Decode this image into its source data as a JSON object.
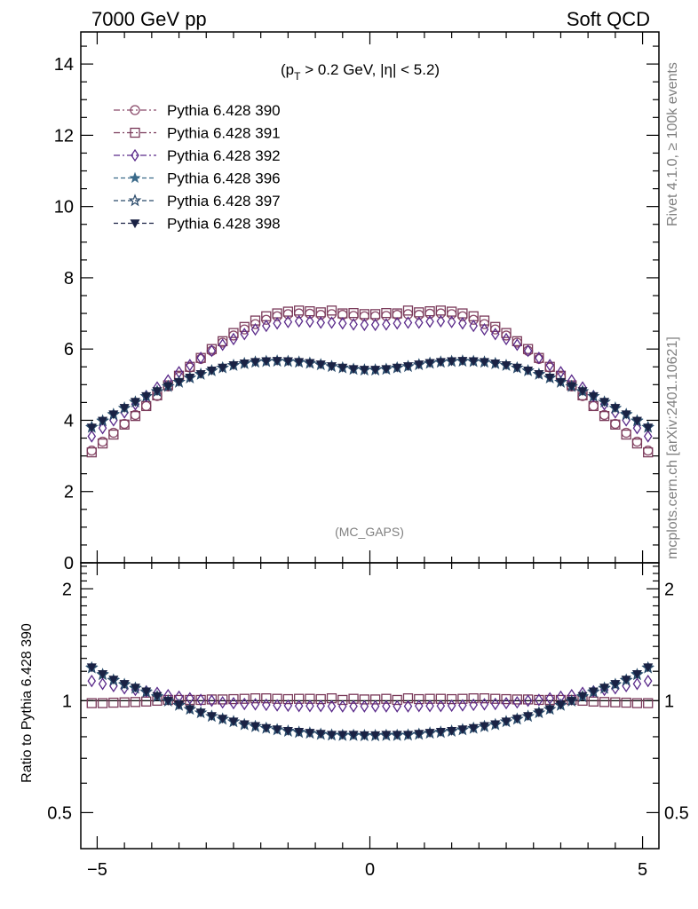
{
  "header": {
    "left": "7000 GeV pp",
    "right": "Soft QCD"
  },
  "side_labels": {
    "rivet": "Rivet 4.1.0, ≥ 100k events",
    "mcplots": "mcplots.cern.ch [arXiv:2401.10621]"
  },
  "chart_data": [
    {
      "type": "scatter",
      "panel": "main",
      "title": "(pT > 0.2 GeV, |η| < 5.2)",
      "title_parts": {
        "open": "(p",
        "sub": "T",
        "rest": " > 0.2 GeV, ",
        "eta": "η",
        "close": "| < 5.2)"
      },
      "watermark": "(MC_GAPS)",
      "xlabel": "",
      "ylabel": "",
      "xlim": [
        -5.3,
        5.3
      ],
      "ylim": [
        0,
        14.9
      ],
      "xticks": [
        -5,
        0,
        5
      ],
      "yticks": [
        0,
        2,
        4,
        6,
        8,
        10,
        12,
        14
      ],
      "ytick_labels": [
        "0",
        "2",
        "4",
        "6",
        "8",
        "10",
        "12",
        "14"
      ],
      "legend_position": "top-left",
      "x": [
        -5.1,
        -4.9,
        -4.7,
        -4.5,
        -4.3,
        -4.1,
        -3.9,
        -3.7,
        -3.5,
        -3.3,
        -3.1,
        -2.9,
        -2.7,
        -2.5,
        -2.3,
        -2.1,
        -1.9,
        -1.7,
        -1.5,
        -1.3,
        -1.1,
        -0.9,
        -0.7,
        -0.5,
        -0.3,
        -0.1,
        0.1,
        0.3,
        0.5,
        0.7,
        0.9,
        1.1,
        1.3,
        1.5,
        1.7,
        1.9,
        2.1,
        2.3,
        2.5,
        2.7,
        2.9,
        3.1,
        3.3,
        3.5,
        3.7,
        3.9,
        4.1,
        4.3,
        4.5,
        4.7,
        4.9,
        5.1
      ],
      "series": [
        {
          "name": "Pythia 6.428 390",
          "color": "#8a4a6a",
          "marker": "circle-open",
          "values": [
            3.15,
            3.4,
            3.65,
            3.9,
            4.15,
            4.4,
            4.68,
            4.95,
            5.22,
            5.48,
            5.72,
            5.95,
            6.18,
            6.38,
            6.55,
            6.7,
            6.82,
            6.92,
            6.98,
            7.0,
            6.99,
            6.96,
            6.98,
            6.96,
            6.93,
            6.92,
            6.92,
            6.93,
            6.96,
            6.98,
            6.96,
            6.99,
            7.0,
            6.98,
            6.92,
            6.82,
            6.7,
            6.55,
            6.38,
            6.18,
            5.95,
            5.72,
            5.48,
            5.22,
            4.95,
            4.68,
            4.4,
            4.15,
            3.9,
            3.65,
            3.4,
            3.15
          ]
        },
        {
          "name": "Pythia 6.428 391",
          "color": "#7a3a5a",
          "marker": "square-open",
          "values": [
            3.1,
            3.35,
            3.6,
            3.88,
            4.12,
            4.4,
            4.7,
            4.98,
            5.25,
            5.5,
            5.75,
            6.0,
            6.22,
            6.45,
            6.62,
            6.8,
            6.92,
            7.0,
            7.05,
            7.08,
            7.06,
            7.03,
            7.08,
            7.0,
            7.01,
            6.98,
            6.98,
            7.01,
            7.0,
            7.08,
            7.03,
            7.06,
            7.08,
            7.05,
            7.0,
            6.92,
            6.8,
            6.62,
            6.45,
            6.22,
            6.0,
            5.75,
            5.5,
            5.25,
            4.98,
            4.7,
            4.4,
            4.12,
            3.88,
            3.6,
            3.35,
            3.1
          ]
        },
        {
          "name": "Pythia 6.428 392",
          "color": "#5a2a8a",
          "marker": "diamond-open",
          "values": [
            3.55,
            3.78,
            4.0,
            4.22,
            4.45,
            4.68,
            4.92,
            5.12,
            5.35,
            5.55,
            5.75,
            5.95,
            6.12,
            6.28,
            6.42,
            6.55,
            6.65,
            6.72,
            6.76,
            6.78,
            6.77,
            6.74,
            6.74,
            6.72,
            6.69,
            6.68,
            6.68,
            6.69,
            6.72,
            6.74,
            6.74,
            6.77,
            6.78,
            6.76,
            6.72,
            6.65,
            6.55,
            6.42,
            6.28,
            6.12,
            5.95,
            5.75,
            5.55,
            5.35,
            5.12,
            4.92,
            4.68,
            4.45,
            4.22,
            4.0,
            3.78,
            3.55
          ]
        },
        {
          "name": "Pythia 6.428 396",
          "color": "#3a6a8a",
          "marker": "star-filled",
          "values": [
            3.82,
            4.0,
            4.18,
            4.35,
            4.52,
            4.68,
            4.82,
            4.96,
            5.08,
            5.2,
            5.3,
            5.4,
            5.48,
            5.55,
            5.6,
            5.64,
            5.66,
            5.67,
            5.66,
            5.64,
            5.61,
            5.57,
            5.52,
            5.48,
            5.44,
            5.42,
            5.42,
            5.44,
            5.48,
            5.52,
            5.57,
            5.61,
            5.64,
            5.66,
            5.67,
            5.66,
            5.64,
            5.6,
            5.55,
            5.48,
            5.4,
            5.3,
            5.2,
            5.08,
            4.96,
            4.82,
            4.68,
            4.52,
            4.35,
            4.18,
            4.0,
            3.82
          ]
        },
        {
          "name": "Pythia 6.428 397",
          "color": "#2a4a6a",
          "marker": "star-open",
          "values": [
            3.8,
            3.98,
            4.16,
            4.34,
            4.51,
            4.67,
            4.81,
            4.95,
            5.07,
            5.19,
            5.29,
            5.39,
            5.47,
            5.54,
            5.59,
            5.63,
            5.65,
            5.66,
            5.65,
            5.63,
            5.6,
            5.56,
            5.51,
            5.47,
            5.43,
            5.41,
            5.41,
            5.43,
            5.47,
            5.51,
            5.56,
            5.6,
            5.63,
            5.65,
            5.66,
            5.65,
            5.63,
            5.59,
            5.54,
            5.47,
            5.39,
            5.29,
            5.19,
            5.07,
            4.95,
            4.81,
            4.67,
            4.51,
            4.34,
            4.16,
            3.98,
            3.8
          ]
        },
        {
          "name": "Pythia 6.428 398",
          "color": "#1a2244",
          "marker": "triangle-down-filled",
          "values": [
            3.8,
            3.99,
            4.17,
            4.35,
            4.52,
            4.68,
            4.82,
            4.96,
            5.08,
            5.2,
            5.3,
            5.4,
            5.48,
            5.55,
            5.6,
            5.64,
            5.66,
            5.67,
            5.66,
            5.64,
            5.61,
            5.57,
            5.52,
            5.48,
            5.44,
            5.42,
            5.42,
            5.44,
            5.48,
            5.52,
            5.57,
            5.61,
            5.64,
            5.66,
            5.67,
            5.66,
            5.64,
            5.6,
            5.55,
            5.48,
            5.4,
            5.3,
            5.2,
            5.08,
            4.96,
            4.82,
            4.68,
            4.52,
            4.35,
            4.17,
            3.99,
            3.8
          ]
        }
      ]
    },
    {
      "type": "scatter",
      "panel": "ratio",
      "ylabel": "Ratio to Pythia 6.428 390",
      "yscale": "log",
      "ylim": [
        0.4,
        2.35
      ],
      "yticks": [
        0.5,
        1,
        2
      ],
      "ytick_labels": [
        "0.5",
        "1",
        "2"
      ],
      "xlim": [
        -5.3,
        5.3
      ],
      "xticks": [
        -5,
        0,
        5
      ],
      "xtick_labels": [
        "−5",
        "0",
        "5"
      ],
      "x": [
        -5.1,
        -4.9,
        -4.7,
        -4.5,
        -4.3,
        -4.1,
        -3.9,
        -3.7,
        -3.5,
        -3.3,
        -3.1,
        -2.9,
        -2.7,
        -2.5,
        -2.3,
        -2.1,
        -1.9,
        -1.7,
        -1.5,
        -1.3,
        -1.1,
        -0.9,
        -0.7,
        -0.5,
        -0.3,
        -0.1,
        0.1,
        0.3,
        0.5,
        0.7,
        0.9,
        1.1,
        1.3,
        1.5,
        1.7,
        1.9,
        2.1,
        2.3,
        2.5,
        2.7,
        2.9,
        3.1,
        3.3,
        3.5,
        3.7,
        3.9,
        4.1,
        4.3,
        4.5,
        4.7,
        4.9,
        5.1
      ],
      "series": [
        {
          "name": "Pythia 6.428 391",
          "color": "#7a3a5a",
          "marker": "square-open",
          "values": [
            0.985,
            0.985,
            0.988,
            0.99,
            0.992,
            0.995,
            1.0,
            1.005,
            1.005,
            1.005,
            1.005,
            1.008,
            1.008,
            1.01,
            1.012,
            1.015,
            1.015,
            1.012,
            1.01,
            1.012,
            1.012,
            1.01,
            1.015,
            1.005,
            1.012,
            1.008,
            1.008,
            1.012,
            1.005,
            1.015,
            1.01,
            1.012,
            1.012,
            1.01,
            1.012,
            1.015,
            1.015,
            1.012,
            1.01,
            1.008,
            1.008,
            1.005,
            1.005,
            1.005,
            1.005,
            1.0,
            0.995,
            0.992,
            0.99,
            0.988,
            0.985,
            0.985
          ]
        },
        {
          "name": "Pythia 6.428 392",
          "color": "#5a2a8a",
          "marker": "diamond-open",
          "values": [
            1.13,
            1.11,
            1.095,
            1.08,
            1.07,
            1.06,
            1.05,
            1.035,
            1.025,
            1.015,
            1.005,
            1.0,
            0.99,
            0.985,
            0.98,
            0.978,
            0.975,
            0.972,
            0.97,
            0.968,
            0.968,
            0.968,
            0.966,
            0.966,
            0.966,
            0.966,
            0.966,
            0.966,
            0.966,
            0.966,
            0.968,
            0.968,
            0.968,
            0.97,
            0.972,
            0.975,
            0.978,
            0.98,
            0.985,
            0.99,
            1.0,
            1.005,
            1.015,
            1.025,
            1.035,
            1.05,
            1.06,
            1.07,
            1.08,
            1.095,
            1.11,
            1.13
          ]
        },
        {
          "name": "Pythia 6.428 396",
          "color": "#3a6a8a",
          "marker": "star-filled",
          "values": [
            1.23,
            1.18,
            1.14,
            1.11,
            1.085,
            1.06,
            1.03,
            1.0,
            0.975,
            0.95,
            0.93,
            0.91,
            0.895,
            0.88,
            0.865,
            0.855,
            0.845,
            0.838,
            0.83,
            0.825,
            0.82,
            0.815,
            0.81,
            0.81,
            0.81,
            0.808,
            0.808,
            0.81,
            0.81,
            0.81,
            0.815,
            0.82,
            0.825,
            0.83,
            0.838,
            0.845,
            0.855,
            0.865,
            0.88,
            0.895,
            0.91,
            0.93,
            0.95,
            0.975,
            1.0,
            1.03,
            1.06,
            1.085,
            1.11,
            1.14,
            1.18,
            1.23
          ]
        },
        {
          "name": "Pythia 6.428 397",
          "color": "#2a4a6a",
          "marker": "star-open",
          "values": [
            1.225,
            1.175,
            1.135,
            1.105,
            1.08,
            1.055,
            1.025,
            0.998,
            0.972,
            0.948,
            0.928,
            0.908,
            0.892,
            0.878,
            0.862,
            0.852,
            0.843,
            0.835,
            0.828,
            0.822,
            0.818,
            0.812,
            0.808,
            0.806,
            0.806,
            0.805,
            0.805,
            0.806,
            0.806,
            0.808,
            0.812,
            0.818,
            0.822,
            0.828,
            0.835,
            0.843,
            0.852,
            0.862,
            0.878,
            0.892,
            0.908,
            0.928,
            0.948,
            0.972,
            0.998,
            1.025,
            1.055,
            1.08,
            1.105,
            1.135,
            1.175,
            1.225
          ]
        },
        {
          "name": "Pythia 6.428 398",
          "color": "#1a2244",
          "marker": "triangle-down-filled",
          "values": [
            1.23,
            1.18,
            1.14,
            1.11,
            1.085,
            1.06,
            1.03,
            1.0,
            0.975,
            0.95,
            0.93,
            0.91,
            0.895,
            0.88,
            0.865,
            0.855,
            0.845,
            0.838,
            0.83,
            0.825,
            0.82,
            0.815,
            0.81,
            0.81,
            0.81,
            0.808,
            0.808,
            0.81,
            0.81,
            0.81,
            0.815,
            0.82,
            0.825,
            0.83,
            0.838,
            0.845,
            0.855,
            0.865,
            0.88,
            0.895,
            0.91,
            0.93,
            0.95,
            0.975,
            1.0,
            1.03,
            1.06,
            1.085,
            1.11,
            1.14,
            1.18,
            1.23
          ]
        }
      ]
    }
  ]
}
